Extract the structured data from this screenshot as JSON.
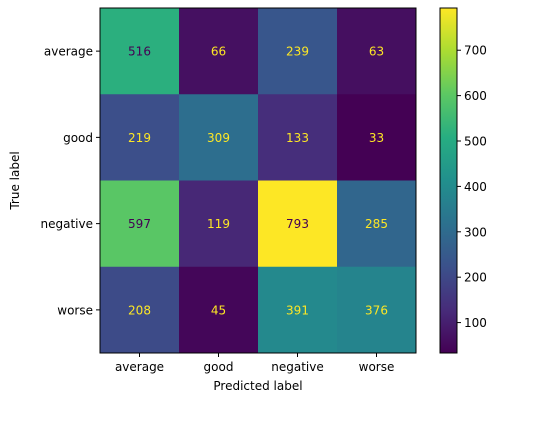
{
  "chart_data": {
    "type": "heatmap",
    "title": "",
    "xlabel": "Predicted label",
    "ylabel": "True label",
    "x_categories": [
      "average",
      "good",
      "negative",
      "worse"
    ],
    "y_categories": [
      "average",
      "good",
      "negative",
      "worse"
    ],
    "values": [
      [
        516,
        66,
        239,
        63
      ],
      [
        219,
        309,
        133,
        33
      ],
      [
        597,
        119,
        793,
        285
      ],
      [
        208,
        45,
        391,
        376
      ]
    ],
    "colormap": "viridis",
    "color_range": [
      33,
      793
    ],
    "colorbar_ticks": [
      100,
      200,
      300,
      400,
      500,
      600,
      700
    ],
    "grid": false,
    "cell_label_colors": {
      "dark": "#440154",
      "light": "#fde725"
    }
  }
}
